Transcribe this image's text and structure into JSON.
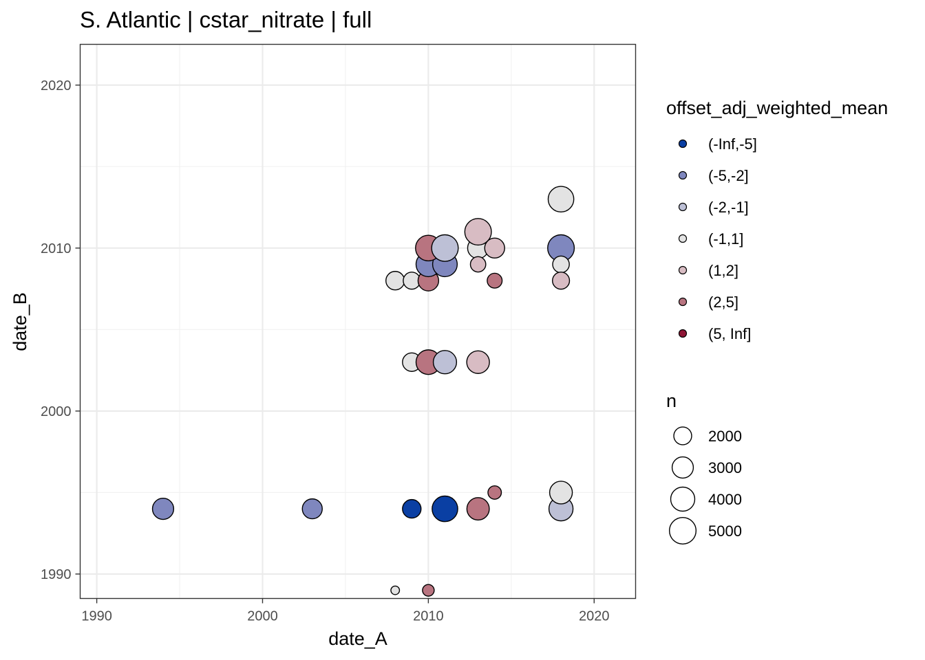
{
  "chart_data": {
    "type": "scatter",
    "title": "S. Atlantic | cstar_nitrate | full",
    "xlabel": "date_A",
    "ylabel": "date_B",
    "xlim": [
      1989,
      2022.5
    ],
    "ylim": [
      1988.5,
      2022.5
    ],
    "x_ticks": [
      1990,
      2000,
      2010,
      2020
    ],
    "y_ticks": [
      1990,
      2000,
      2010,
      2020
    ],
    "x_tick_labels": [
      "1990",
      "2000",
      "2010",
      "2020"
    ],
    "y_tick_labels": [
      "1990",
      "2000",
      "2010",
      "2020"
    ],
    "grid": true,
    "legend_position": "right",
    "color_legend": {
      "title": "offset_adj_weighted_mean",
      "entries": [
        {
          "label": "(-Inf,-5]",
          "color": "#0a3fa3"
        },
        {
          "label": "(-5,-2]",
          "color": "#7f87be"
        },
        {
          "label": "(-2,-1]",
          "color": "#bdc0d6"
        },
        {
          "label": "(-1,1]",
          "color": "#e3e3e3"
        },
        {
          "label": "(1,2]",
          "color": "#d8bcc3"
        },
        {
          "label": "(2,5]",
          "color": "#b87480"
        },
        {
          "label": "(5, Inf]",
          "color": "#8e1535"
        }
      ]
    },
    "size_legend": {
      "title": "n",
      "entries": [
        {
          "label": "2000",
          "n": 2000
        },
        {
          "label": "3000",
          "n": 3000
        },
        {
          "label": "4000",
          "n": 4000
        },
        {
          "label": "5000",
          "n": 5000
        }
      ]
    },
    "points": [
      {
        "x": 1994,
        "y": 1994,
        "n": 3000,
        "class": "(-5,-2]"
      },
      {
        "x": 2003,
        "y": 1994,
        "n": 2600,
        "class": "(-5,-2]"
      },
      {
        "x": 2009,
        "y": 1994,
        "n": 2200,
        "class": "(-Inf,-5]"
      },
      {
        "x": 2011,
        "y": 1994,
        "n": 4600,
        "class": "(-Inf,-5]"
      },
      {
        "x": 2013,
        "y": 1994,
        "n": 3400,
        "class": "(2,5]"
      },
      {
        "x": 2014,
        "y": 1995,
        "n": 1000,
        "class": "(2,5]"
      },
      {
        "x": 2018,
        "y": 1994,
        "n": 4000,
        "class": "(-2,-1]"
      },
      {
        "x": 2018,
        "y": 1995,
        "n": 3500,
        "class": "(-1,1]"
      },
      {
        "x": 2008,
        "y": 1989,
        "n": 300,
        "class": "(-1,1]"
      },
      {
        "x": 2010,
        "y": 1989,
        "n": 700,
        "class": "(2,5]"
      },
      {
        "x": 2009,
        "y": 2003,
        "n": 2200,
        "class": "(-1,1]"
      },
      {
        "x": 2010,
        "y": 2003,
        "n": 4200,
        "class": "(2,5]"
      },
      {
        "x": 2011,
        "y": 2003,
        "n": 3700,
        "class": "(-2,-1]"
      },
      {
        "x": 2013,
        "y": 2003,
        "n": 3500,
        "class": "(1,2]"
      },
      {
        "x": 2008,
        "y": 2008,
        "n": 2200,
        "class": "(-1,1]"
      },
      {
        "x": 2009,
        "y": 2008,
        "n": 1800,
        "class": "(-1,1]"
      },
      {
        "x": 2010,
        "y": 2008,
        "n": 2800,
        "class": "(2,5]"
      },
      {
        "x": 2010,
        "y": 2009,
        "n": 4200,
        "class": "(-5,-2]"
      },
      {
        "x": 2011,
        "y": 2009,
        "n": 4200,
        "class": "(-5,-2]"
      },
      {
        "x": 2010,
        "y": 2010,
        "n": 4600,
        "class": "(2,5]"
      },
      {
        "x": 2011,
        "y": 2010,
        "n": 5000,
        "class": "(-2,-1]"
      },
      {
        "x": 2013,
        "y": 2010,
        "n": 2900,
        "class": "(-1,1]"
      },
      {
        "x": 2013,
        "y": 2011,
        "n": 5000,
        "class": "(1,2]"
      },
      {
        "x": 2013,
        "y": 2009,
        "n": 1400,
        "class": "(1,2]"
      },
      {
        "x": 2014,
        "y": 2010,
        "n": 2600,
        "class": "(1,2]"
      },
      {
        "x": 2014,
        "y": 2008,
        "n": 1300,
        "class": "(2,5]"
      },
      {
        "x": 2018,
        "y": 2013,
        "n": 4600,
        "class": "(-1,1]"
      },
      {
        "x": 2018,
        "y": 2010,
        "n": 5000,
        "class": "(-5,-2]"
      },
      {
        "x": 2018,
        "y": 2009,
        "n": 1700,
        "class": "(-1,1]"
      },
      {
        "x": 2018,
        "y": 2008,
        "n": 1800,
        "class": "(1,2]"
      }
    ]
  }
}
